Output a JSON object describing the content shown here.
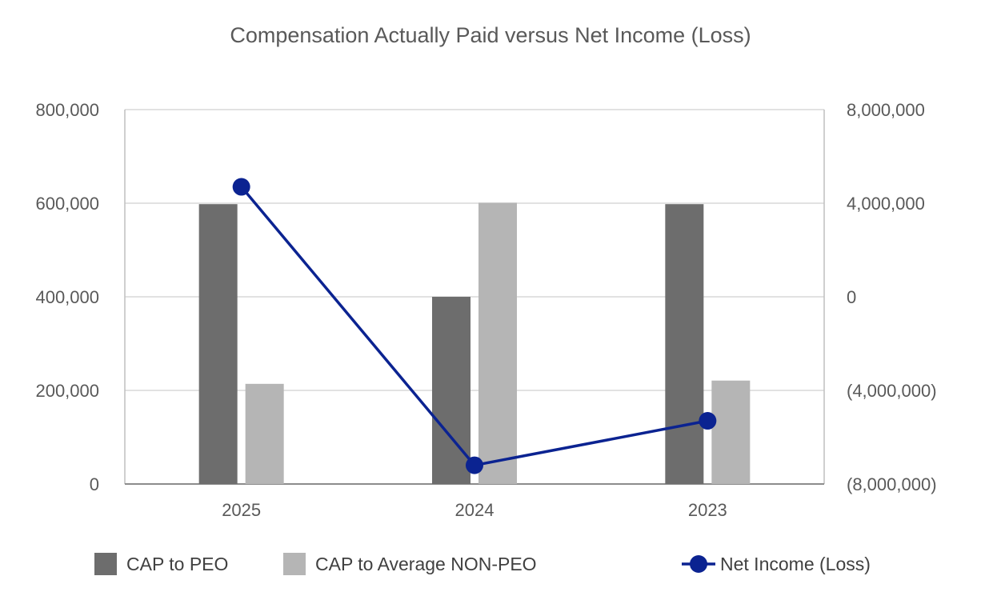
{
  "chart_data": {
    "type": "bar",
    "title": "Compensation Actually Paid versus Net Income (Loss)",
    "categories": [
      "2025",
      "2024",
      "2023"
    ],
    "y_left": {
      "min": 0,
      "max": 800000,
      "ticks": [
        0,
        200000,
        400000,
        600000,
        800000
      ],
      "tick_labels": [
        "0",
        "200,000",
        "400,000",
        "600,000",
        "800,000"
      ]
    },
    "y_right": {
      "min": -8000000,
      "max": 8000000,
      "ticks": [
        -8000000,
        -4000000,
        0,
        4000000,
        8000000
      ],
      "tick_labels": [
        "(8,000,000)",
        "(4,000,000)",
        "0",
        "4,000,000",
        "8,000,000"
      ]
    },
    "series": [
      {
        "name": "CAP to PEO",
        "kind": "bar",
        "axis": "left",
        "color": "#6d6d6d",
        "values": [
          598000,
          400000,
          598000
        ]
      },
      {
        "name": "CAP to Average NON-PEO",
        "kind": "bar",
        "axis": "left",
        "color": "#b5b5b5",
        "values": [
          214000,
          601000,
          221000
        ]
      },
      {
        "name": "Net Income (Loss)",
        "kind": "line",
        "axis": "right",
        "color": "#0b2391",
        "values": [
          4700000,
          -7200000,
          -5300000
        ]
      }
    ],
    "grid": true,
    "legend_position": "bottom"
  }
}
